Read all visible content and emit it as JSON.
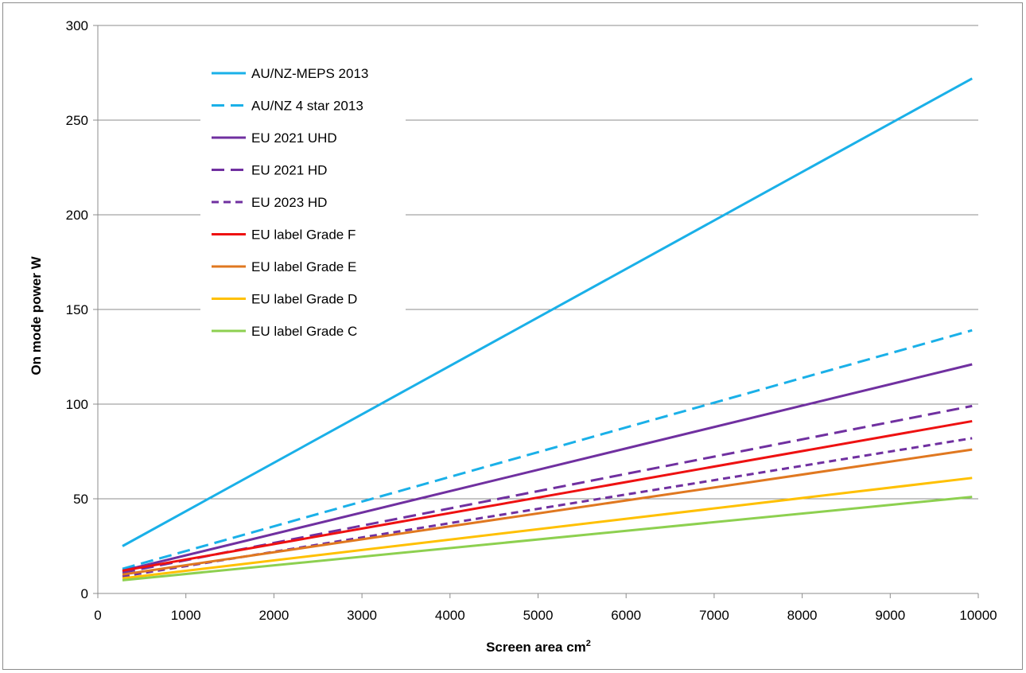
{
  "chart_data": {
    "type": "line",
    "title": "",
    "xlabel": "Screen area cm",
    "xlabel_superscript": "2",
    "ylabel": "On mode power W",
    "xlim": [
      0,
      10000
    ],
    "ylim": [
      0,
      300
    ],
    "xticks": [
      "0",
      "1000",
      "2000",
      "3000",
      "4000",
      "5000",
      "6000",
      "7000",
      "8000",
      "9000",
      "10000"
    ],
    "yticks": [
      "0",
      "50",
      "100",
      "150",
      "200",
      "250",
      "300"
    ],
    "grid": "horizontal",
    "legend_position": "top-left",
    "x": [
      280,
      9930
    ],
    "series": [
      {
        "name": "AU/NZ-MEPS 2013",
        "values": [
          25,
          272
        ],
        "color": "#1ab0e8",
        "dash": "solid"
      },
      {
        "name": "AU/NZ 4 star 2013",
        "values": [
          13,
          139
        ],
        "color": "#1ab0e8",
        "dash": "long-dash"
      },
      {
        "name": "EU 2021 UHD",
        "values": [
          12,
          121
        ],
        "color": "#7030a0",
        "dash": "solid"
      },
      {
        "name": "EU 2021 HD",
        "values": [
          11,
          99
        ],
        "color": "#7030a0",
        "dash": "long-dash"
      },
      {
        "name": "EU 2023 HD",
        "values": [
          9,
          82
        ],
        "color": "#7030a0",
        "dash": "short-dash"
      },
      {
        "name": "EU label Grade F",
        "values": [
          12,
          91
        ],
        "color": "#ee1111",
        "dash": "solid"
      },
      {
        "name": "EU label Grade E",
        "values": [
          10,
          76
        ],
        "color": "#e07820",
        "dash": "solid"
      },
      {
        "name": "EU label Grade D",
        "values": [
          8,
          61
        ],
        "color": "#ffc000",
        "dash": "solid"
      },
      {
        "name": "EU label Grade C",
        "values": [
          7,
          51
        ],
        "color": "#8dd050",
        "dash": "solid"
      }
    ]
  }
}
